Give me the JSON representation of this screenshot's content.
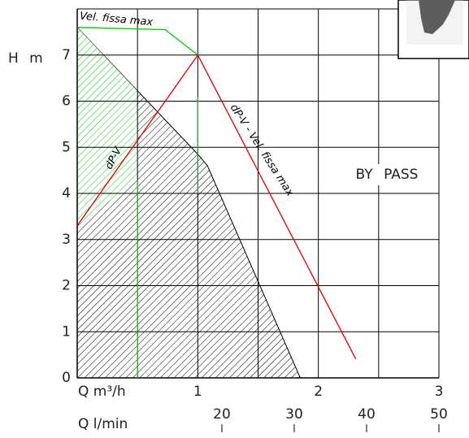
{
  "chart_data": {
    "type": "line",
    "xlabel": "Q m³/h",
    "ylabel": "H m",
    "x2label": "Q l/min",
    "annotation": "BY PASS",
    "xlim": [
      0,
      3
    ],
    "ylim": [
      0,
      8
    ],
    "xticks": [
      1,
      2,
      3
    ],
    "yticks": [
      0,
      1,
      2,
      3,
      4,
      5,
      6,
      7
    ],
    "xgrid": [
      0,
      0.5,
      1,
      1.5,
      2,
      2.5,
      3
    ],
    "ygrid": [
      1,
      2,
      3,
      4,
      5,
      6,
      7,
      8
    ],
    "x2lim": [
      0,
      50
    ],
    "x2ticks": [
      20,
      30,
      40,
      50
    ],
    "series": [
      {
        "name": "Vel. fissa max",
        "color": "#00c800",
        "x": [
          0,
          0.73,
          1
        ],
        "values": [
          7.6,
          7.55,
          7
        ]
      },
      {
        "name": "dP-V",
        "color": "#e00000",
        "x": [
          0,
          1
        ],
        "values": [
          3.3,
          7
        ]
      },
      {
        "name": "dP-V - Vel. fissa max",
        "color": "#e00000",
        "x": [
          1,
          2.31
        ],
        "values": [
          7,
          0.41
        ]
      }
    ],
    "lines": [
      {
        "color": "#00c800",
        "x": [
          0.5,
          0.5
        ],
        "values": [
          4.3,
          0
        ]
      },
      {
        "color": "#00c800",
        "x": [
          1,
          1
        ],
        "values": [
          6.1,
          4
        ]
      }
    ],
    "areas": [
      {
        "color": "#000000",
        "x": [
          0,
          0,
          1,
          1.08,
          1.85
        ],
        "values": [
          0,
          7.6,
          4.85,
          4.6,
          0
        ]
      },
      {
        "color": "#00c800",
        "x": [
          0,
          0.5,
          0.5,
          0
        ],
        "values": [
          7.6,
          6.22,
          4.3,
          3.3
        ]
      }
    ]
  }
}
